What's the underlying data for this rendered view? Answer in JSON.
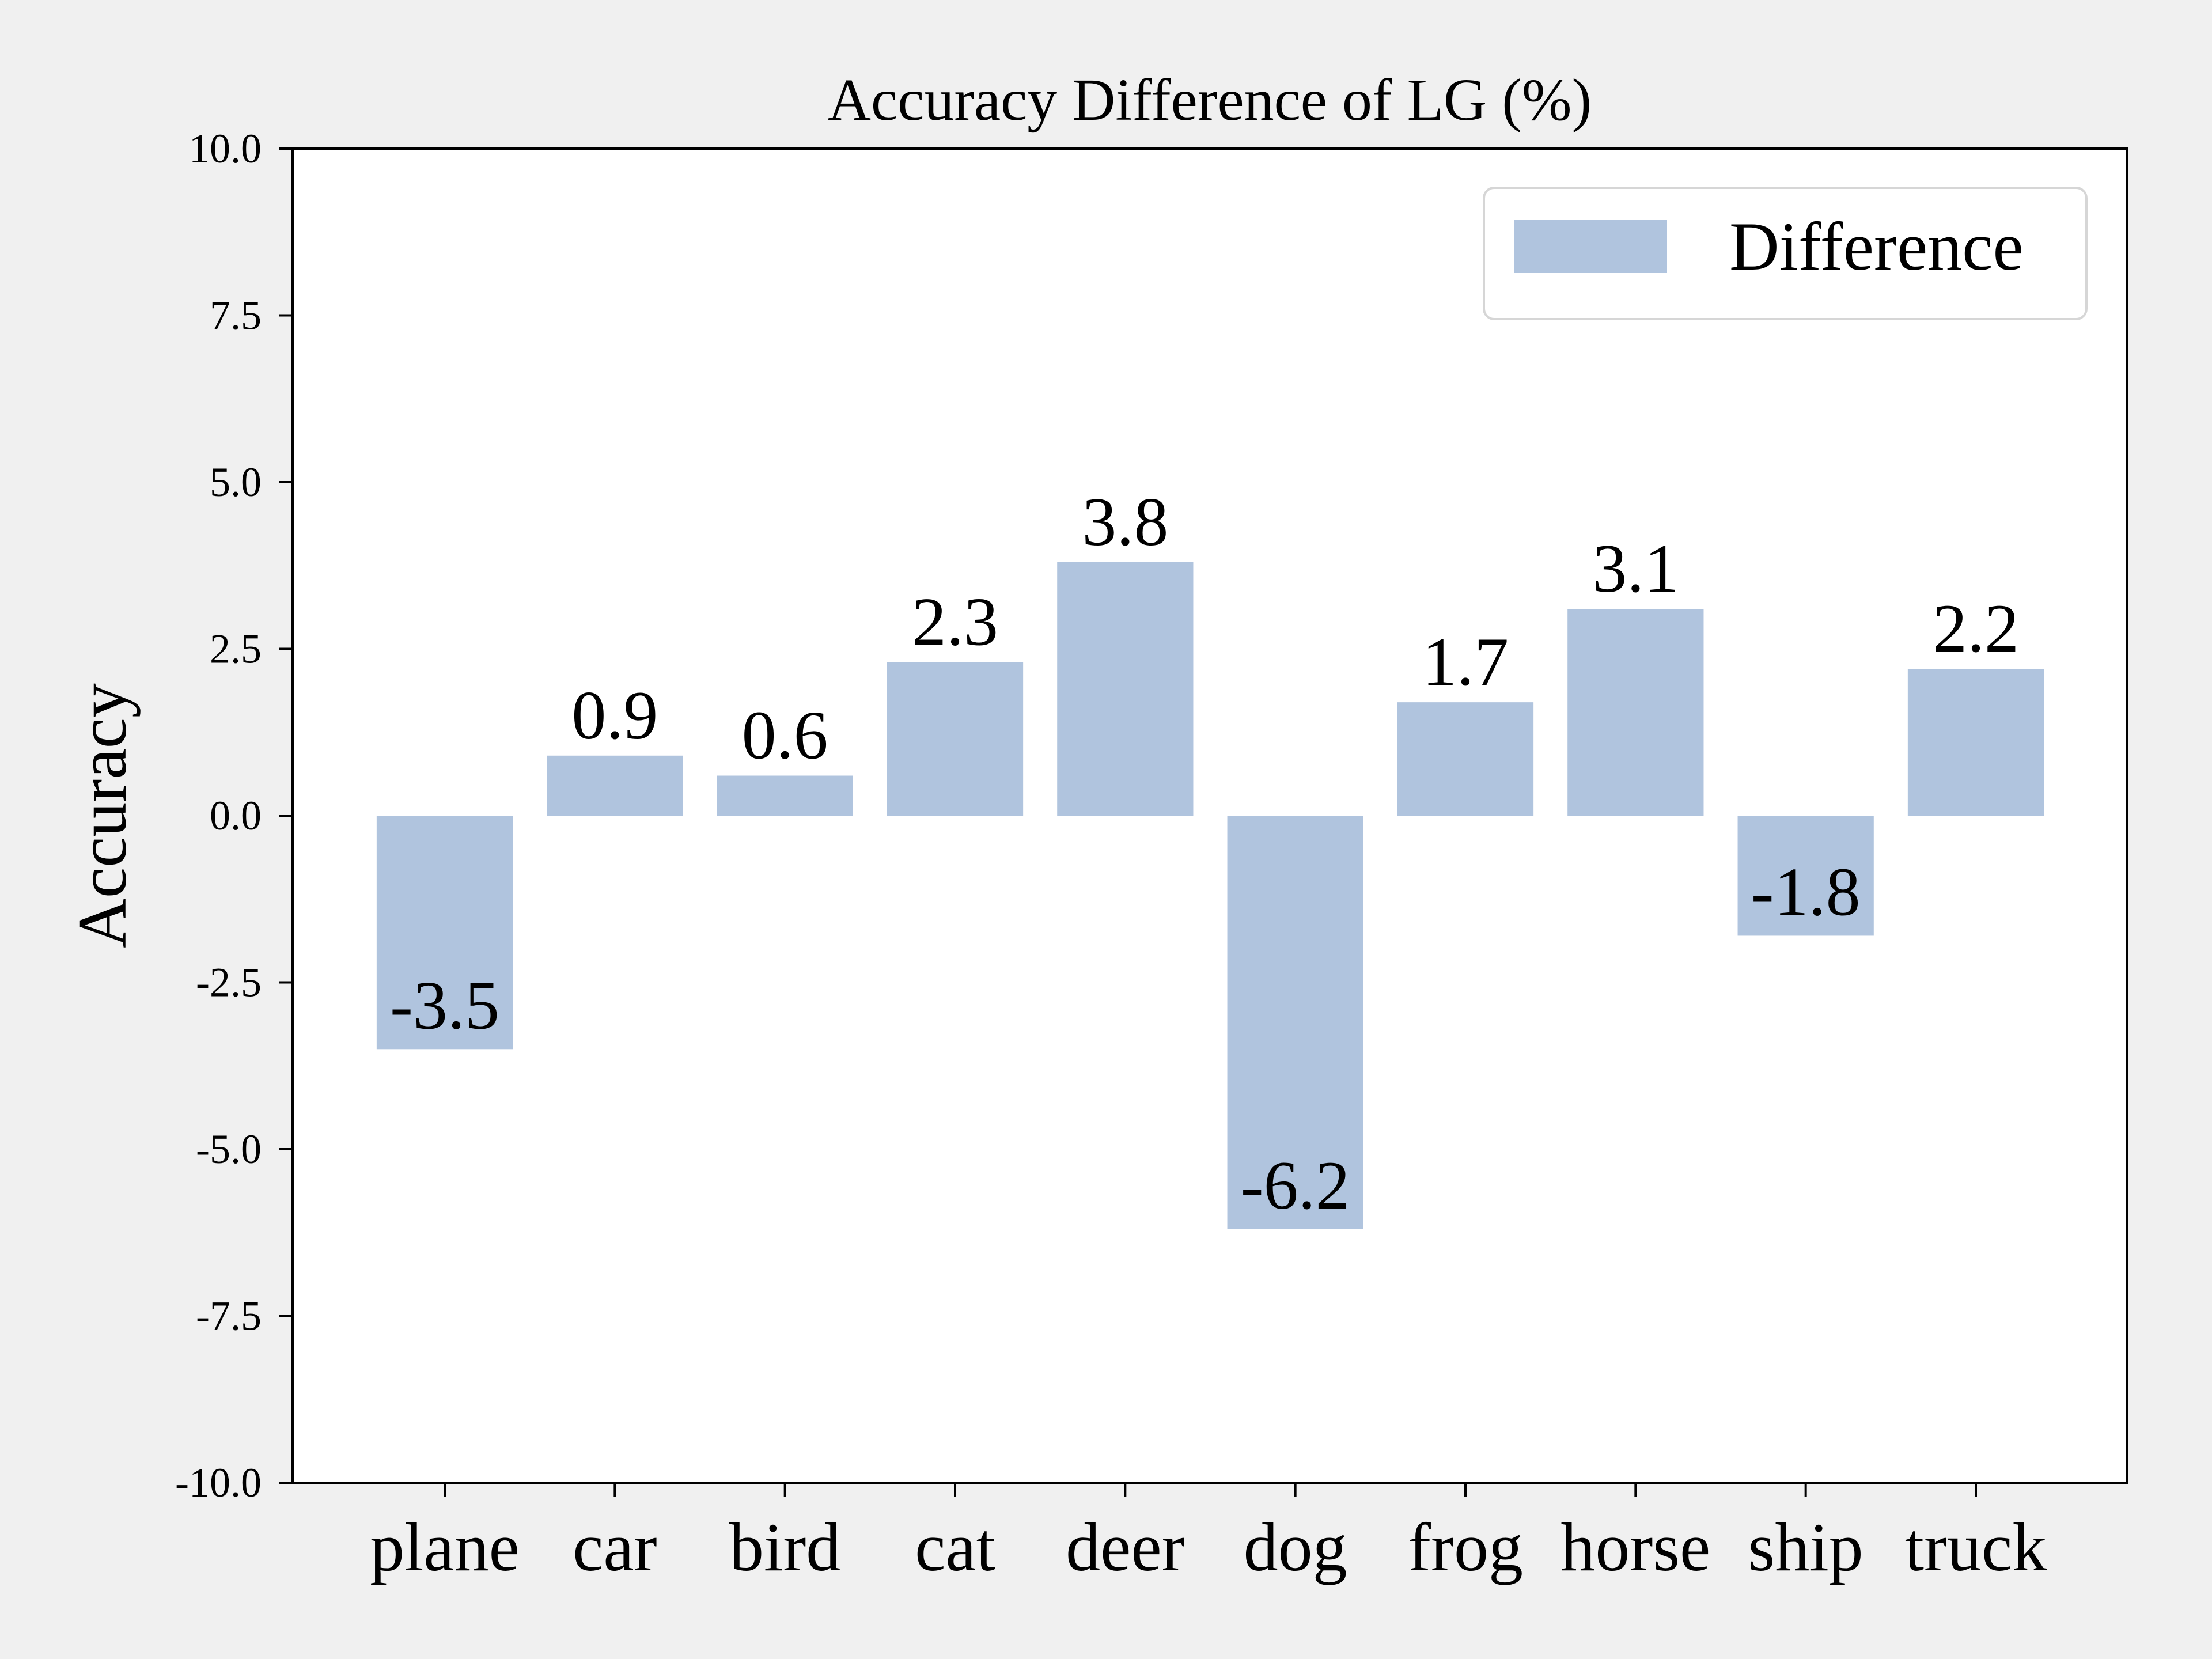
{
  "chart_data": {
    "type": "bar",
    "title": "Accuracy Difference of LG (%)",
    "xlabel": "",
    "ylabel": "Accuracy",
    "categories": [
      "plane",
      "car",
      "bird",
      "cat",
      "deer",
      "dog",
      "frog",
      "horse",
      "ship",
      "truck"
    ],
    "series": [
      {
        "name": "Difference",
        "values": [
          -3.5,
          0.9,
          0.6,
          2.3,
          3.8,
          -6.2,
          1.7,
          3.1,
          -1.8,
          2.2
        ]
      }
    ],
    "data_labels": [
      "-3.5",
      "0.9",
      "0.6",
      "2.3",
      "3.8",
      "-6.2",
      "1.7",
      "3.1",
      "-1.8",
      "2.2"
    ],
    "ylim": [
      -10,
      10
    ],
    "yticks": [
      -10,
      -7.5,
      -5,
      -2.5,
      0,
      2.5,
      5,
      7.5,
      10
    ],
    "ytick_labels": [
      "-10.0",
      "-7.5",
      "-5.0",
      "-2.5",
      "0.0",
      "2.5",
      "5.0",
      "7.5",
      "10.0"
    ],
    "grid": false,
    "legend": {
      "position": "top-right",
      "label": "Difference"
    },
    "bar_color": "#b0c4de",
    "background_color": "#f0f0f0",
    "plot_background_color": "#ffffff"
  }
}
